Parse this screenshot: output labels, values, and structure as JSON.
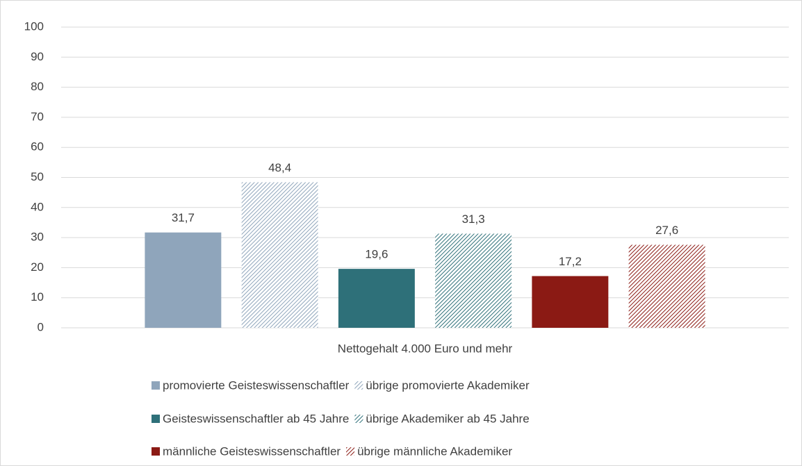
{
  "chart_data": {
    "type": "bar",
    "categories": [
      "Nettogehalt 4.000 Euro und mehr"
    ],
    "series": [
      {
        "name": "promovierte Geisteswissenschaftler",
        "color": "#8fa5bb",
        "hatch": false,
        "values": [
          31.7
        ],
        "value_labels": [
          "31,7"
        ]
      },
      {
        "name": "übrige promovierte Akademiker",
        "color": "#8fa5bb",
        "hatch": true,
        "values": [
          48.4
        ],
        "value_labels": [
          "48,4"
        ]
      },
      {
        "name": "Geisteswissenschaftler ab 45 Jahre",
        "color": "#2e7079",
        "hatch": false,
        "values": [
          19.6
        ],
        "value_labels": [
          "19,6"
        ]
      },
      {
        "name": "übrige Akademiker ab 45 Jahre",
        "color": "#2e7079",
        "hatch": true,
        "values": [
          31.3
        ],
        "value_labels": [
          "31,3"
        ]
      },
      {
        "name": "männliche Geisteswissenschaftler",
        "color": "#8b1a14",
        "hatch": false,
        "values": [
          17.2
        ],
        "value_labels": [
          "17,2"
        ]
      },
      {
        "name": "übrige männliche Akademiker",
        "color": "#8b1a14",
        "hatch": true,
        "values": [
          27.6
        ],
        "value_labels": [
          "27,6"
        ]
      }
    ],
    "ylim": [
      0,
      100
    ],
    "yticks": [
      0,
      10,
      20,
      30,
      40,
      50,
      60,
      70,
      80,
      90,
      100
    ],
    "grid": true,
    "legend": "bottom"
  }
}
